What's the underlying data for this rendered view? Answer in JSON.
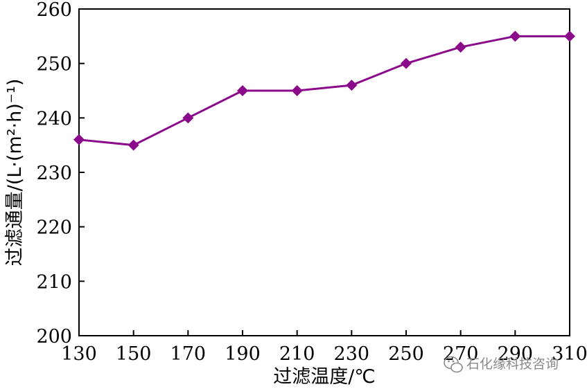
{
  "chart_data": {
    "type": "line",
    "x": [
      130,
      150,
      170,
      190,
      210,
      230,
      250,
      270,
      290,
      310
    ],
    "series": [
      {
        "values": [
          236,
          235,
          240,
          245,
          245,
          246,
          250,
          253,
          255,
          255
        ],
        "color": "#8B0A8B"
      }
    ],
    "xlabel": "过滤温度/℃",
    "ylabel": "过滤通量/(L·(m²·h)⁻¹)",
    "xlim": [
      130,
      310
    ],
    "ylim": [
      200,
      260
    ],
    "xticks": [
      "130",
      "150",
      "170",
      "190",
      "210",
      "230",
      "250",
      "270",
      "290",
      "310"
    ],
    "yticks": [
      "200",
      "210",
      "220",
      "230",
      "240",
      "250",
      "260"
    ],
    "grid": false,
    "marker": "diamond"
  },
  "watermark": {
    "text": "石化缘科技咨询",
    "icon": "wechat-icon"
  }
}
